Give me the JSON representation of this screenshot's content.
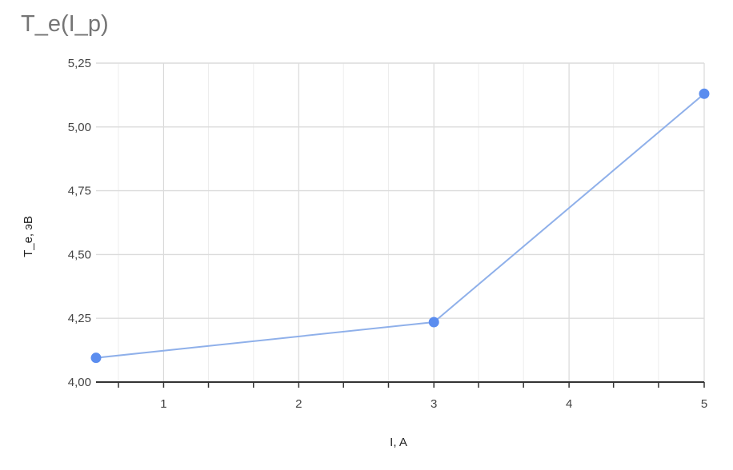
{
  "chart_data": {
    "type": "line",
    "title": "T_e(I_p)",
    "xlabel": "I, A",
    "ylabel": "T_e, эВ",
    "xlim": [
      0.5,
      5
    ],
    "ylim": [
      4.0,
      5.25
    ],
    "x_ticks": [
      1,
      2,
      3,
      4,
      5
    ],
    "x_tick_labels": [
      "1",
      "2",
      "3",
      "4",
      "5"
    ],
    "x_minor_step": 0.333,
    "y_ticks": [
      4.0,
      4.25,
      4.5,
      4.75,
      5.0,
      5.25
    ],
    "y_tick_labels": [
      "4,00",
      "4,25",
      "4,50",
      "4,75",
      "5,00",
      "5,25"
    ],
    "grid": true,
    "legend": "none",
    "series": [
      {
        "color": "#5b8def",
        "x": [
          0.5,
          3,
          5
        ],
        "y": [
          4.095,
          4.235,
          5.13
        ]
      }
    ]
  }
}
